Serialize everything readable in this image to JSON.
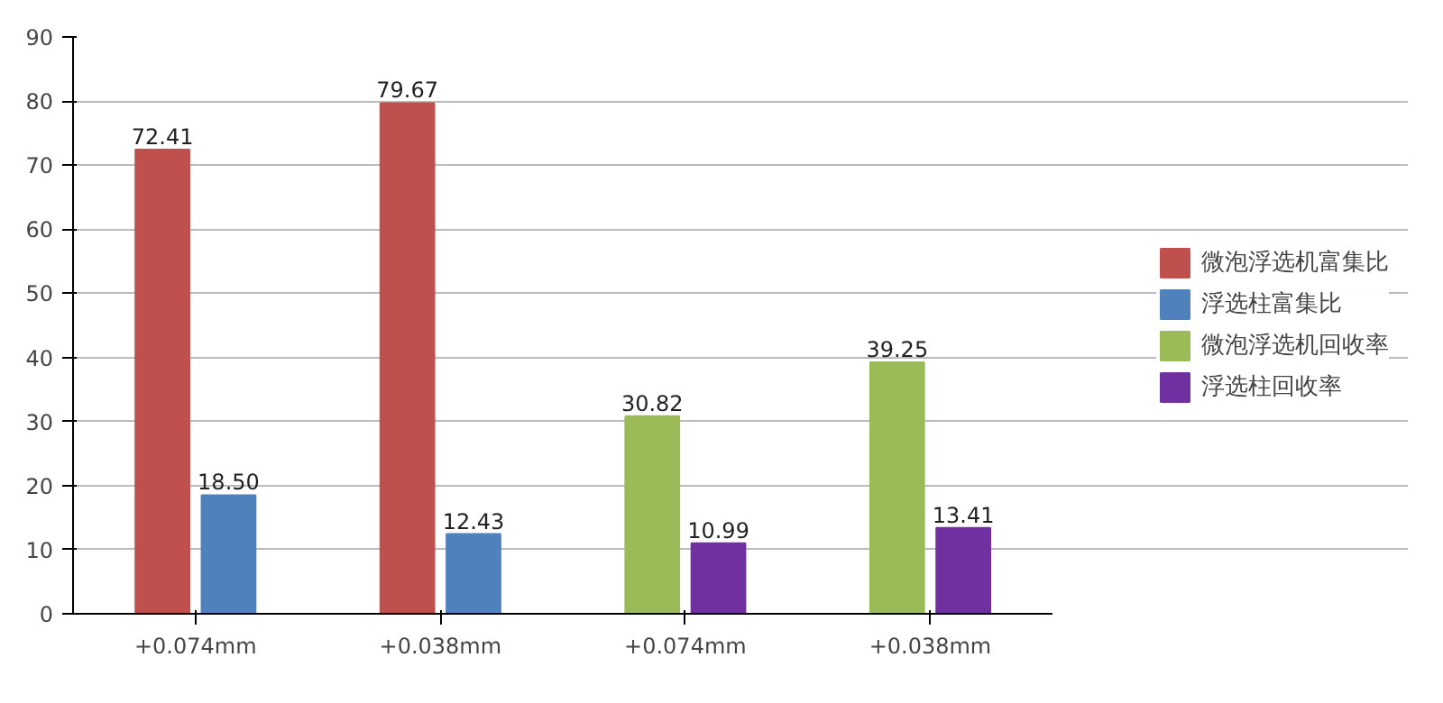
{
  "chart_data": {
    "type": "bar",
    "categories": [
      "+0.074mm",
      "+0.038mm",
      "+0.074mm",
      "+0.038mm"
    ],
    "series": [
      {
        "name": "微泡浮选机富集比",
        "color": "#c0504d",
        "values": [
          72.41,
          79.67,
          null,
          null
        ],
        "value_labels": [
          "72.41",
          "79.67",
          null,
          null
        ]
      },
      {
        "name": "浮选柱富集比",
        "color": "#4f81bd",
        "values": [
          18.5,
          12.43,
          null,
          null
        ],
        "value_labels": [
          "18.50",
          "12.43",
          null,
          null
        ]
      },
      {
        "name": "微泡浮选机回收率",
        "color": "#9bbb59",
        "values": [
          null,
          null,
          30.82,
          39.25
        ],
        "value_labels": [
          null,
          null,
          "30.82",
          "39.25"
        ]
      },
      {
        "name": "浮选柱回收率",
        "color": "#7030a0",
        "values": [
          null,
          null,
          10.99,
          13.41
        ],
        "value_labels": [
          null,
          null,
          "10.99",
          "13.41"
        ]
      }
    ],
    "ylim": [
      0,
      90
    ],
    "yticks": [
      0,
      10,
      20,
      30,
      40,
      50,
      60,
      70,
      80,
      90
    ],
    "grid": "y",
    "legend": "right"
  }
}
